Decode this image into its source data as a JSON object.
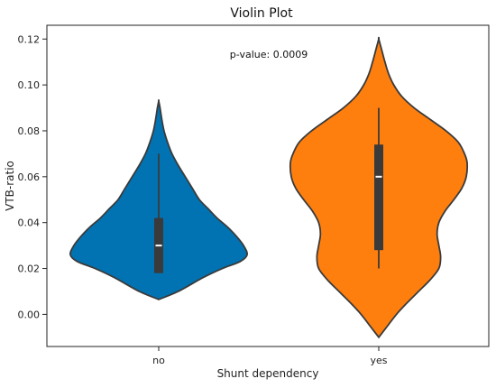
{
  "chart_data": {
    "type": "violin",
    "title": "Violin Plot",
    "xlabel": "Shunt dependency",
    "ylabel": "VTB-ratio",
    "ylim": [
      -0.014,
      0.126
    ],
    "yticks": [
      "0.00",
      "0.02",
      "0.04",
      "0.06",
      "0.08",
      "0.10",
      "0.12"
    ],
    "annotation": "p-value: 0.0009",
    "grid": false,
    "categories": [
      "no",
      "yes"
    ],
    "series": [
      {
        "category": "no",
        "color": "#0173b2",
        "density": [
          [
            0.0065,
            0.0
          ],
          [
            0.01,
            0.22
          ],
          [
            0.016,
            0.5
          ],
          [
            0.02,
            0.72
          ],
          [
            0.023,
            0.92
          ],
          [
            0.026,
            1.0
          ],
          [
            0.03,
            0.96
          ],
          [
            0.034,
            0.88
          ],
          [
            0.038,
            0.78
          ],
          [
            0.042,
            0.66
          ],
          [
            0.046,
            0.56
          ],
          [
            0.05,
            0.46
          ],
          [
            0.055,
            0.38
          ],
          [
            0.06,
            0.3
          ],
          [
            0.065,
            0.22
          ],
          [
            0.07,
            0.15
          ],
          [
            0.075,
            0.1
          ],
          [
            0.08,
            0.06
          ],
          [
            0.085,
            0.035
          ],
          [
            0.09,
            0.015
          ],
          [
            0.093,
            0.0
          ]
        ],
        "box": {
          "q1": 0.018,
          "median": 0.03,
          "q3": 0.042,
          "whisker_low": 0.018,
          "whisker_high": 0.07
        }
      },
      {
        "category": "yes",
        "color": "#ff7f0e",
        "density": [
          [
            -0.01,
            0.0
          ],
          [
            -0.005,
            0.1
          ],
          [
            0.0,
            0.2
          ],
          [
            0.005,
            0.32
          ],
          [
            0.01,
            0.45
          ],
          [
            0.015,
            0.58
          ],
          [
            0.02,
            0.68
          ],
          [
            0.025,
            0.7
          ],
          [
            0.03,
            0.68
          ],
          [
            0.035,
            0.66
          ],
          [
            0.04,
            0.68
          ],
          [
            0.045,
            0.75
          ],
          [
            0.05,
            0.85
          ],
          [
            0.055,
            0.94
          ],
          [
            0.06,
            0.99
          ],
          [
            0.066,
            1.0
          ],
          [
            0.07,
            0.97
          ],
          [
            0.075,
            0.9
          ],
          [
            0.08,
            0.76
          ],
          [
            0.085,
            0.58
          ],
          [
            0.09,
            0.4
          ],
          [
            0.095,
            0.26
          ],
          [
            0.1,
            0.17
          ],
          [
            0.105,
            0.11
          ],
          [
            0.11,
            0.07
          ],
          [
            0.115,
            0.035
          ],
          [
            0.12,
            0.0
          ]
        ],
        "box": {
          "q1": 0.028,
          "median": 0.06,
          "q3": 0.074,
          "whisker_low": 0.02,
          "whisker_high": 0.09
        }
      }
    ]
  }
}
